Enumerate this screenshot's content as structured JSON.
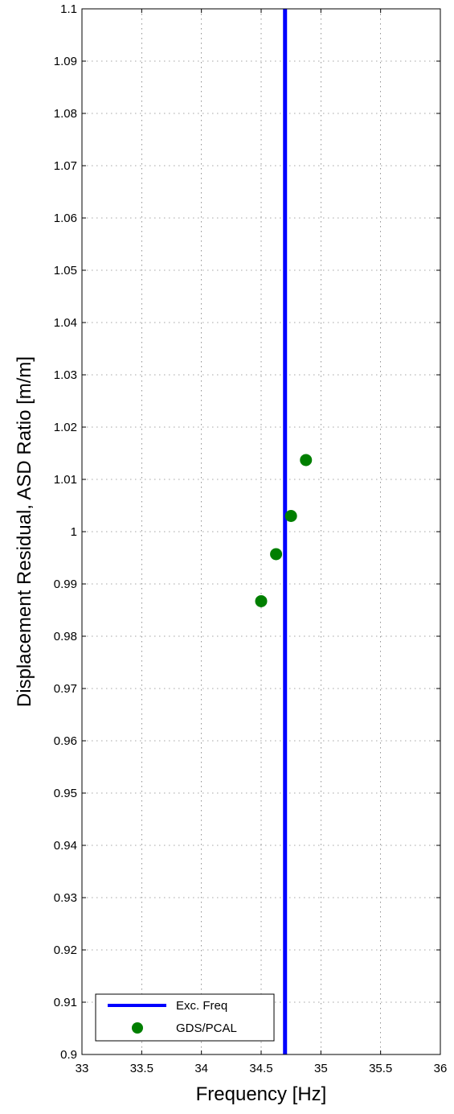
{
  "chart_data": {
    "type": "scatter",
    "xlabel": "Frequency [Hz]",
    "ylabel": "Displacement Residual, ASD Ratio [m/m]",
    "xlim": [
      33,
      36
    ],
    "ylim": [
      0.9,
      1.1
    ],
    "x_ticks": [
      "33",
      "33.5",
      "34",
      "34.5",
      "35",
      "35.5",
      "36"
    ],
    "y_ticks": [
      "0.9",
      "0.91",
      "0.92",
      "0.93",
      "0.94",
      "0.95",
      "0.96",
      "0.97",
      "0.98",
      "0.99",
      "1",
      "1.01",
      "1.02",
      "1.03",
      "1.04",
      "1.05",
      "1.06",
      "1.07",
      "1.08",
      "1.09",
      "1.1"
    ],
    "grid": true,
    "legend_position": "bottom-left",
    "series": [
      {
        "name": "Exc. Freq",
        "kind": "vline",
        "x": 34.7,
        "color": "#0000ff"
      },
      {
        "name": "GDS/PCAL",
        "kind": "points",
        "color": "#007f00",
        "points": [
          {
            "x": 34.5,
            "y": 0.9867
          },
          {
            "x": 34.625,
            "y": 0.9957
          },
          {
            "x": 34.75,
            "y": 1.003
          },
          {
            "x": 34.875,
            "y": 1.0137
          }
        ]
      }
    ]
  }
}
